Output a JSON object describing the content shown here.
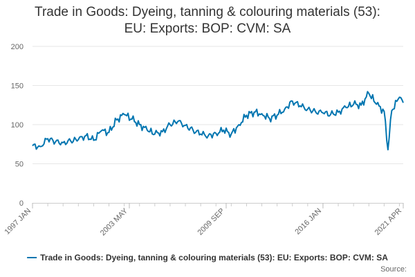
{
  "chart_data": {
    "type": "line",
    "title_lines": [
      "Trade in Goods: Dyeing, tanning & colouring materials (53):",
      "EU: Exports: BOP: CVM: SA"
    ],
    "xlabel": "",
    "ylabel": "",
    "x_tick_labels": [
      "1997 JAN",
      "2003 MAY",
      "2009 SEP",
      "2016 JAN",
      "2021 APR"
    ],
    "y_tick_labels": [
      "0",
      "50",
      "100",
      "150",
      "200"
    ],
    "ylim": [
      0,
      200
    ],
    "grid": "horizontal",
    "legend_position": "bottom",
    "series": [
      {
        "name": "Trade in Goods: Dyeing, tanning & colouring materials (53): EU: Exports: BOP: CVM: SA",
        "color": "#0075b0",
        "points": [
          [
            "1997-01",
            73
          ],
          [
            "1997-07",
            72
          ],
          [
            "1998-01",
            82
          ],
          [
            "1998-07",
            78
          ],
          [
            "1999-01",
            77
          ],
          [
            "1999-07",
            79
          ],
          [
            "2000-01",
            81
          ],
          [
            "2000-07",
            86
          ],
          [
            "2001-01",
            80
          ],
          [
            "2001-07",
            92
          ],
          [
            "2002-01",
            90
          ],
          [
            "2002-07",
            106
          ],
          [
            "2003-01",
            113
          ],
          [
            "2003-07",
            107
          ],
          [
            "2004-01",
            100
          ],
          [
            "2004-07",
            93
          ],
          [
            "2005-01",
            88
          ],
          [
            "2005-07",
            91
          ],
          [
            "2006-01",
            100
          ],
          [
            "2006-07",
            104
          ],
          [
            "2007-01",
            99
          ],
          [
            "2007-07",
            93
          ],
          [
            "2008-01",
            88
          ],
          [
            "2008-07",
            86
          ],
          [
            "2009-01",
            89
          ],
          [
            "2009-07",
            93
          ],
          [
            "2010-01",
            88
          ],
          [
            "2010-07",
            100
          ],
          [
            "2011-01",
            112
          ],
          [
            "2011-07",
            116
          ],
          [
            "2012-01",
            114
          ],
          [
            "2012-07",
            108
          ],
          [
            "2013-01",
            112
          ],
          [
            "2013-07",
            120
          ],
          [
            "2014-01",
            130
          ],
          [
            "2014-07",
            124
          ],
          [
            "2015-01",
            120
          ],
          [
            "2015-07",
            117
          ],
          [
            "2016-01",
            115
          ],
          [
            "2016-07",
            113
          ],
          [
            "2017-01",
            116
          ],
          [
            "2017-07",
            122
          ],
          [
            "2018-01",
            126
          ],
          [
            "2018-07",
            125
          ],
          [
            "2019-01",
            140
          ],
          [
            "2019-07",
            126
          ],
          [
            "2020-01",
            117
          ],
          [
            "2020-04",
            68
          ],
          [
            "2020-07",
            118
          ],
          [
            "2021-01",
            135
          ],
          [
            "2021-04",
            128
          ]
        ]
      }
    ],
    "source_label": "Source:"
  }
}
